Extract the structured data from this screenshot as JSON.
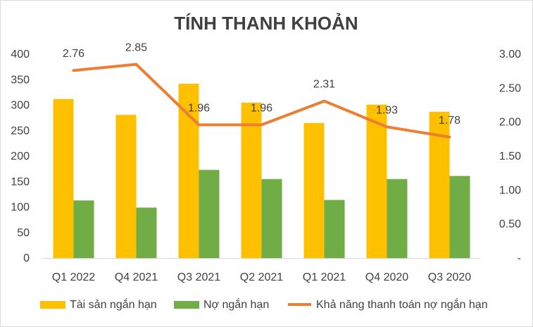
{
  "chart_data": {
    "type": "bar",
    "title": "TÍNH THANH KHOẢN",
    "categories": [
      "Q1 2022",
      "Q4 2021",
      "Q3 2021",
      "Q2 2021",
      "Q1 2021",
      "Q4 2020",
      "Q3 2020"
    ],
    "series": [
      {
        "name": "Tài sản ngắn hạn",
        "type": "bar",
        "axis": "left",
        "color": "#FFC000",
        "values": [
          312,
          281,
          342,
          305,
          265,
          301,
          287
        ]
      },
      {
        "name": "Nợ ngắn hạn",
        "type": "bar",
        "axis": "left",
        "color": "#70AD47",
        "values": [
          113,
          99,
          173,
          155,
          114,
          155,
          161
        ]
      },
      {
        "name": "Khả năng thanh toán nợ ngắn hạn",
        "type": "line",
        "axis": "right",
        "color": "#ED7D31",
        "values": [
          2.76,
          2.85,
          1.96,
          1.96,
          2.31,
          1.93,
          1.78
        ],
        "labels": [
          "2.76",
          "2.85",
          "1.96",
          "1.96",
          "2.31",
          "1.93",
          "1.78"
        ]
      }
    ],
    "y_left": {
      "ylim": [
        0,
        400
      ],
      "ticks": [
        0,
        50,
        100,
        150,
        200,
        250,
        300,
        350,
        400
      ],
      "tick_labels": [
        "0",
        "50",
        "100",
        "150",
        "200",
        "250",
        "300",
        "350",
        "400"
      ]
    },
    "y_right": {
      "ylim": [
        0,
        3
      ],
      "ticks": [
        0,
        0.5,
        1,
        1.5,
        2,
        2.5,
        3
      ],
      "tick_labels": [
        "-",
        "0.50",
        "1.00",
        "1.50",
        "2.00",
        "2.50",
        "3.00"
      ]
    },
    "grid": false,
    "legend_position": "bottom"
  }
}
